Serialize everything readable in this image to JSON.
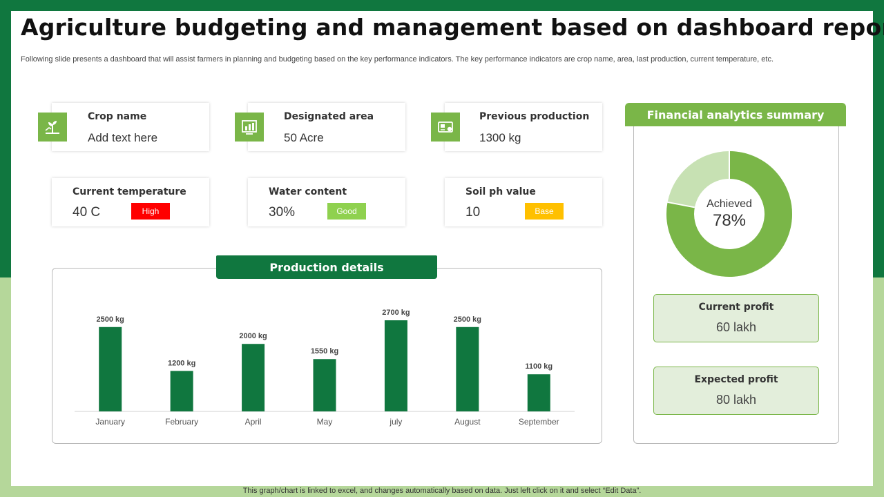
{
  "colors": {
    "dark_green": "#10773f",
    "light_green": "#7ab648",
    "pale_green": "#b5d79a",
    "donut_remaining": "#c7e1b3",
    "badge_high": "#ff0000",
    "badge_good": "#8fd14f",
    "badge_base": "#ffc000"
  },
  "header": {
    "title": "Agriculture budgeting and management based on dashboard report",
    "subtitle": "Following slide presents a dashboard that will assist farmers in planning and budgeting based on the key performance indicators. The key performance indicators are crop name, area, last production, current temperature, etc."
  },
  "kpis": {
    "crop": {
      "label": "Crop name",
      "value": "Add text here",
      "icon": "plant-growth-icon"
    },
    "area": {
      "label": "Designated area",
      "value": "50 Acre",
      "icon": "land-area-chart-icon"
    },
    "production": {
      "label": "Previous production",
      "value": "1300 kg",
      "icon": "money-card-icon"
    },
    "temperature": {
      "label": "Current temperature",
      "value": "40 C",
      "badge": "High"
    },
    "water": {
      "label": "Water content",
      "value": "30%",
      "badge": "Good"
    },
    "soil": {
      "label": "Soil ph value",
      "value": "10",
      "badge": "Base"
    }
  },
  "production": {
    "header": "Production details"
  },
  "financial": {
    "header": "Financial analytics summary",
    "donut_label": "Achieved",
    "donut_value": "78%",
    "donut_fraction": 0.78,
    "current_profit": {
      "label": "Current profit",
      "value": "60 lakh"
    },
    "expected_profit": {
      "label": "Expected profit",
      "value": "80 lakh"
    }
  },
  "footer": {
    "note": "This graph/chart is linked to excel, and changes automatically based on data. Just left click on it and select “Edit Data”."
  },
  "chart_data": [
    {
      "type": "bar",
      "categories": [
        "January",
        "February",
        "April",
        "May",
        "july",
        "August",
        "September"
      ],
      "values": [
        2500,
        1200,
        2000,
        1550,
        2700,
        2500,
        1100
      ],
      "value_labels": [
        "2500 kg",
        "1200 kg",
        "2000 kg",
        "1550 kg",
        "2700 kg",
        "2500 kg",
        "1100 kg"
      ],
      "unit": "kg",
      "ylim": [
        0,
        2700
      ],
      "grid": false,
      "legend": "none"
    },
    {
      "type": "pie",
      "categories": [
        "Achieved",
        "Remaining"
      ],
      "values": [
        78,
        22
      ],
      "center_label": "Achieved 78%"
    }
  ]
}
